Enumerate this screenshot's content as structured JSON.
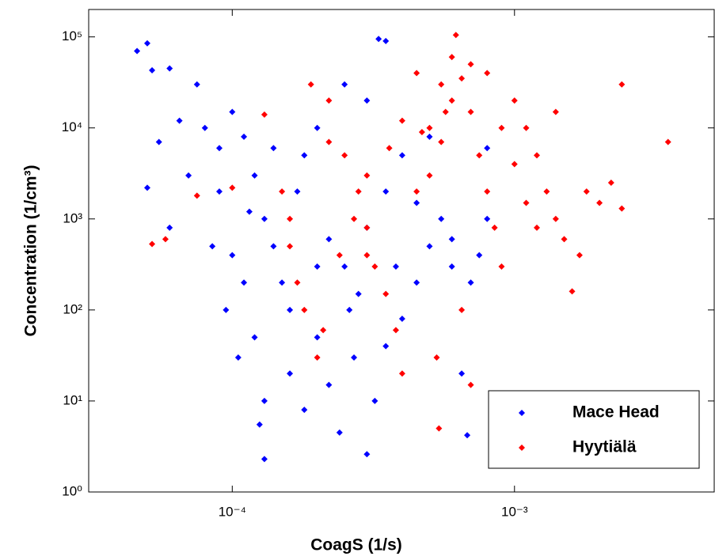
{
  "chart_data": {
    "type": "scatter",
    "x_label": "CoagS (1/s)",
    "y_label": "Concentration (1/cm³)",
    "x_log": true,
    "y_log": true,
    "xlim": [
      3.1e-05,
      0.0051
    ],
    "ylim": [
      1,
      200000.0
    ],
    "xticks": [
      {
        "value": 0.0001,
        "label": "10⁻⁴"
      },
      {
        "value": 0.001,
        "label": "10⁻³"
      }
    ],
    "yticks": [
      {
        "value": 1,
        "label": "10⁰"
      },
      {
        "value": 10,
        "label": "10¹"
      },
      {
        "value": 100,
        "label": "10²"
      },
      {
        "value": 1000,
        "label": "10³"
      },
      {
        "value": 10000,
        "label": "10⁴"
      },
      {
        "value": 100000,
        "label": "10⁵"
      }
    ],
    "legend_position": "lower right",
    "series": [
      {
        "name": "Mace Head",
        "color": "#0000ff",
        "x": [
          4.6e-05,
          5e-05,
          5.2e-05,
          6e-05,
          7.5e-05,
          5.5e-05,
          6.5e-05,
          8e-05,
          0.0001,
          5e-05,
          6e-05,
          7e-05,
          8.5e-05,
          9e-05,
          0.00011,
          0.00012,
          0.00013,
          0.00014,
          0.00015,
          0.00016,
          0.00012,
          0.00013,
          0.000125,
          0.00013,
          0.00016,
          0.00018,
          0.0002,
          0.00022,
          0.00024,
          0.00027,
          0.0003,
          0.00032,
          0.00035,
          0.0004,
          0.00045,
          0.0005,
          0.00055,
          0.0006,
          0.00065,
          0.00068,
          0.0007,
          0.0008,
          0.00033,
          0.00035,
          0.0003,
          0.00025,
          0.0002,
          0.00018,
          0.00017,
          0.00022,
          0.00025,
          0.00028,
          0.0003,
          0.00035,
          0.0004,
          0.0001,
          9.5e-05,
          0.00011,
          0.000105,
          0.00014,
          9e-05,
          0.000115,
          0.0002,
          0.00026,
          0.00038,
          0.0006,
          0.00075,
          0.00045,
          0.0005,
          0.0008
        ],
        "values": [
          70000,
          85000,
          43000,
          45000,
          30000,
          7000,
          12000,
          10000,
          15000,
          2200,
          800,
          3000,
          500,
          2000,
          8000,
          3000,
          1000,
          500,
          200,
          100,
          50,
          10,
          5.5,
          2.3,
          20,
          8,
          50,
          15,
          4.5,
          30,
          2.6,
          10,
          40,
          80,
          200,
          500,
          1000,
          300,
          20,
          4.2,
          200,
          1000,
          95000,
          90000,
          20000,
          30000,
          10000,
          5000,
          2000,
          600,
          300,
          150,
          800,
          2000,
          5000,
          400,
          100,
          200,
          30,
          6000,
          6000,
          1200,
          300,
          100,
          300,
          600,
          400,
          1500,
          8000,
          6000
        ]
      },
      {
        "name": "Hyytiälä",
        "color": "#ff0000",
        "x": [
          5.2e-05,
          5.8e-05,
          7.5e-05,
          0.0001,
          0.00013,
          0.00015,
          0.00016,
          0.00017,
          0.00018,
          0.0002,
          0.00021,
          0.00019,
          0.00022,
          0.00025,
          0.00028,
          0.0003,
          0.00032,
          0.00035,
          0.00038,
          0.0004,
          0.00045,
          0.0005,
          0.00055,
          0.0006,
          0.00062,
          0.00065,
          0.0007,
          0.00075,
          0.0008,
          0.00085,
          0.0009,
          0.001,
          0.0011,
          0.0012,
          0.0013,
          0.0014,
          0.0015,
          0.0016,
          0.0017,
          0.0018,
          0.002,
          0.0022,
          0.0024,
          0.0024,
          0.0035,
          0.0014,
          0.00054,
          0.00053,
          0.00065,
          0.0007,
          0.00045,
          0.0004,
          0.00036,
          0.0003,
          0.00027,
          0.00024,
          0.0006,
          0.00055,
          0.0005,
          0.00047,
          0.0008,
          0.0009,
          0.001,
          0.0012,
          0.0011,
          0.0007,
          0.00057,
          0.00022,
          0.00016,
          0.0003
        ],
        "values": [
          530,
          600,
          1800,
          2200,
          14000,
          2000,
          500,
          200,
          100,
          30,
          60,
          30000,
          20000,
          5000,
          2000,
          800,
          300,
          150,
          60,
          20,
          2000,
          10000,
          30000,
          60000,
          105000,
          35000,
          15000,
          5000,
          2000,
          800,
          300,
          20000,
          10000,
          5000,
          2000,
          1000,
          600,
          160,
          400,
          2000,
          1500,
          2500,
          1300,
          30000,
          7000,
          15000,
          5,
          30,
          100,
          15,
          40000,
          12000,
          6000,
          3000,
          1000,
          400,
          20000,
          7000,
          3000,
          9000,
          40000,
          10000,
          4000,
          800,
          1500,
          50000,
          15000,
          7000,
          1000,
          400
        ]
      }
    ]
  }
}
